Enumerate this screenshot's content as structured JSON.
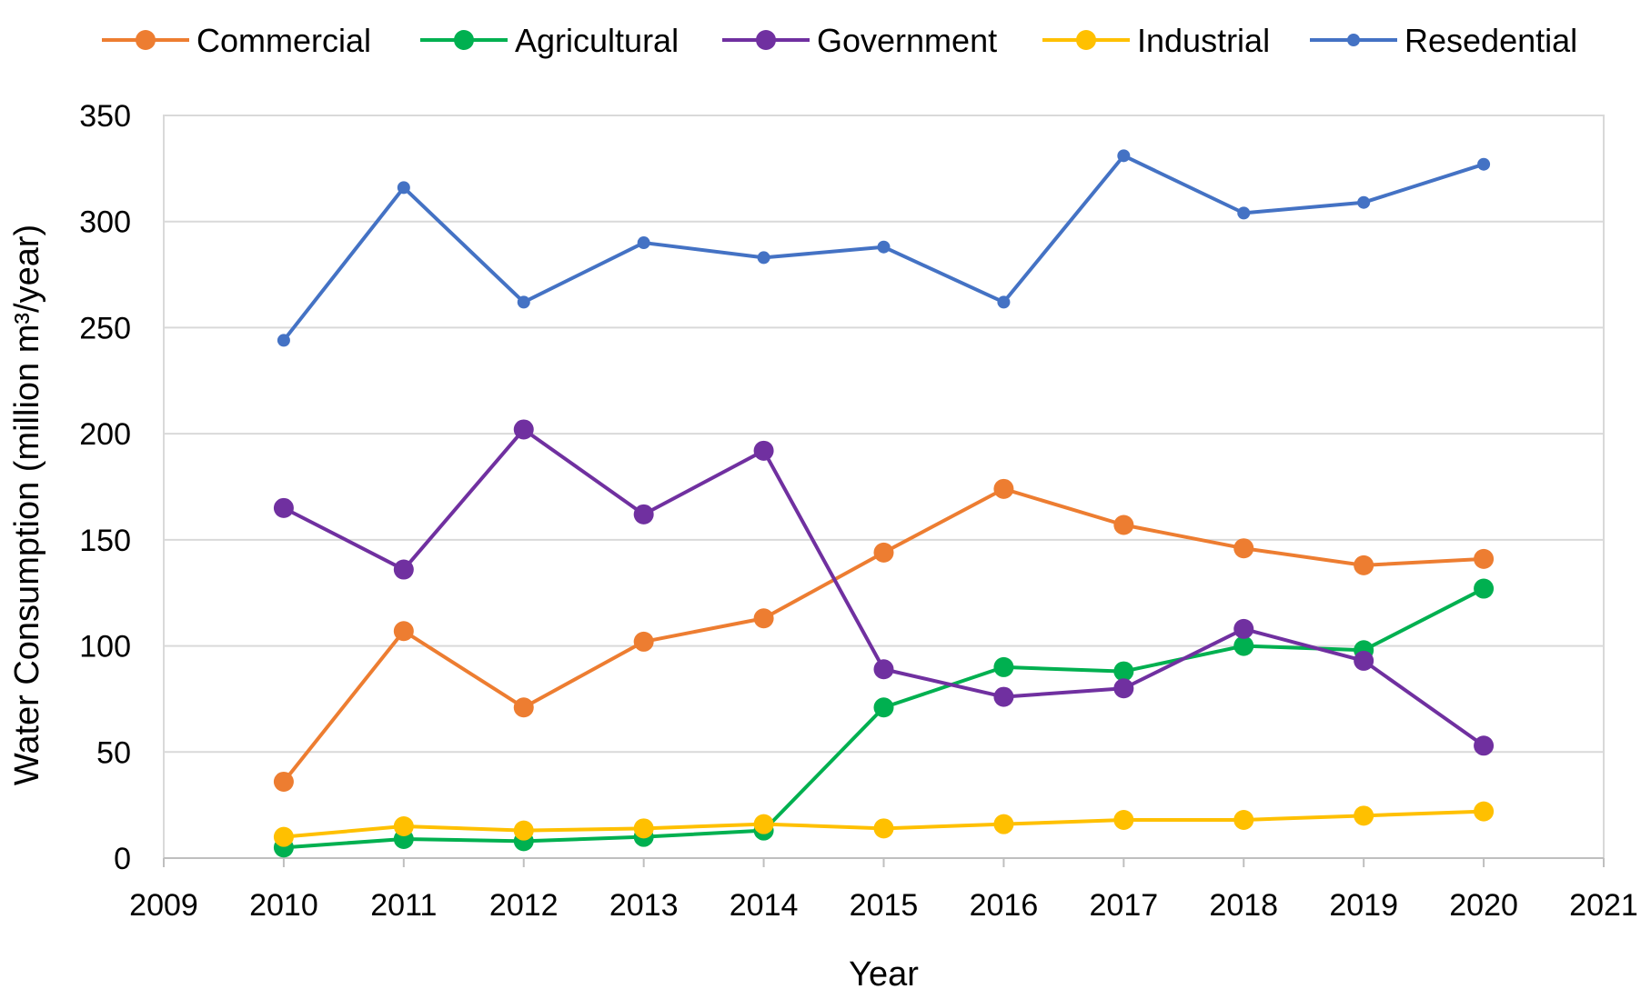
{
  "chart_data": {
    "type": "line",
    "x": [
      2010,
      2011,
      2012,
      2013,
      2014,
      2015,
      2016,
      2017,
      2018,
      2019,
      2020
    ],
    "xlim": [
      2009,
      2021
    ],
    "x_ticks": [
      2009,
      2010,
      2011,
      2012,
      2013,
      2014,
      2015,
      2016,
      2017,
      2018,
      2019,
      2020,
      2021
    ],
    "ylim": [
      0,
      350
    ],
    "y_ticks": [
      0,
      50,
      100,
      150,
      200,
      250,
      300,
      350
    ],
    "xlabel": "Year",
    "ylabel": "Water Consumption (million m³/year)",
    "grid": "horizontal",
    "legend_position": "top",
    "series": [
      {
        "name": "Commercial",
        "color": "#ED7D31",
        "marker": "large",
        "values": [
          36,
          107,
          71,
          102,
          113,
          144,
          174,
          157,
          146,
          138,
          141
        ]
      },
      {
        "name": "Agricultural",
        "color": "#00B050",
        "marker": "large",
        "values": [
          5,
          9,
          8,
          10,
          13,
          71,
          90,
          88,
          100,
          98,
          127
        ]
      },
      {
        "name": "Government",
        "color": "#7030A0",
        "marker": "large",
        "values": [
          165,
          136,
          202,
          162,
          192,
          89,
          76,
          80,
          108,
          93,
          53
        ]
      },
      {
        "name": "Industrial",
        "color": "#FFC000",
        "marker": "large",
        "values": [
          10,
          15,
          13,
          14,
          16,
          14,
          16,
          18,
          18,
          20,
          22
        ]
      },
      {
        "name": "Resedential",
        "color": "#4472C4",
        "marker": "small",
        "values": [
          244,
          316,
          262,
          290,
          283,
          288,
          262,
          331,
          304,
          309,
          327
        ]
      }
    ]
  }
}
